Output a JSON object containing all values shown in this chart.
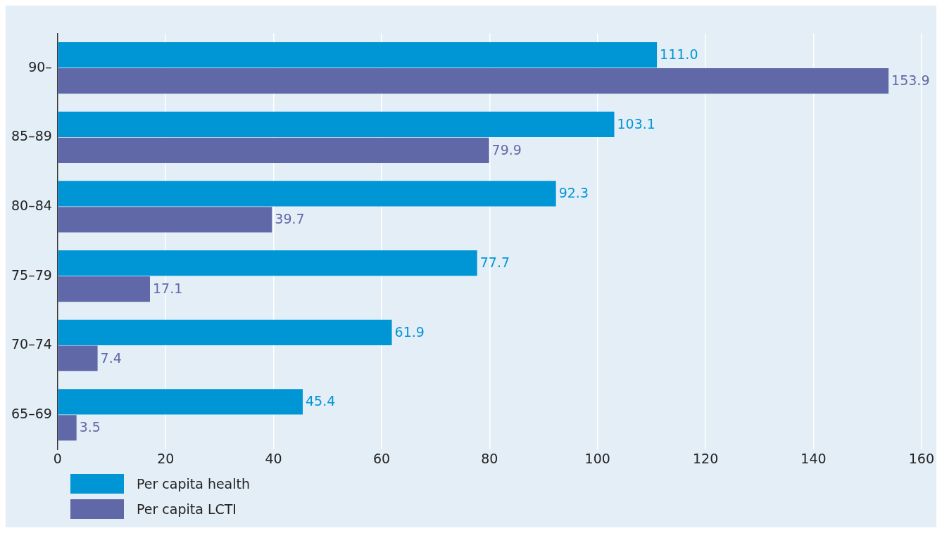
{
  "chart_data": {
    "type": "bar",
    "orientation": "horizontal",
    "categories": [
      "90–",
      "85–89",
      "80–84",
      "75–79",
      "70–74",
      "65–69"
    ],
    "series": [
      {
        "name": "Per capita health",
        "color": "#0096d6",
        "values": [
          111.0,
          103.1,
          92.3,
          77.7,
          61.9,
          45.4
        ],
        "value_labels": [
          "111.0",
          "103.1",
          "92.3",
          "77.7",
          "61.9",
          "45.4"
        ]
      },
      {
        "name": "Per capita LCTI",
        "color": "#6068a8",
        "values": [
          153.9,
          79.9,
          39.7,
          17.1,
          7.4,
          3.5
        ],
        "value_labels": [
          "153.9",
          "79.9",
          "39.7",
          "17.1",
          "7.4",
          "3.5"
        ]
      }
    ],
    "xlim": [
      0,
      160
    ],
    "xticks": [
      0,
      20,
      40,
      60,
      80,
      100,
      120,
      140,
      160
    ],
    "grid": "x",
    "legend": "bottom left"
  }
}
